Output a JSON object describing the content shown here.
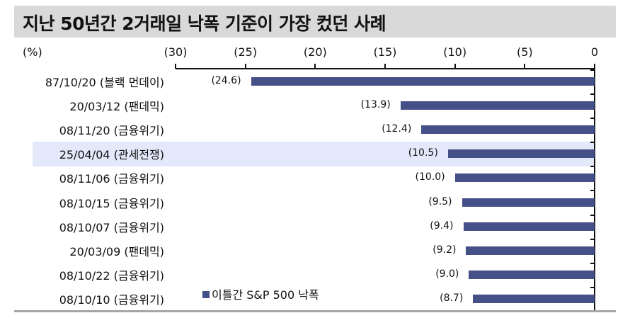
{
  "title": "지난 50년간 2거래일 낙폭 기준이 가장 컸던 사례",
  "unit_label": "(%)",
  "axis": {
    "ticks": [
      {
        "label": "(30)",
        "value": -30
      },
      {
        "label": "(25)",
        "value": -25
      },
      {
        "label": "(20)",
        "value": -20
      },
      {
        "label": "(15)",
        "value": -15
      },
      {
        "label": "(10)",
        "value": -10
      },
      {
        "label": "(5)",
        "value": -5
      },
      {
        "label": "0",
        "value": 0
      }
    ]
  },
  "legend": {
    "label": "이틀간 S&P 500 낙폭",
    "color": "#445087"
  },
  "colors": {
    "bar": "#445087",
    "highlight": "#e4e8fb",
    "title_bg": "#d9d9d9"
  },
  "highlighted_index": 3,
  "rows": [
    {
      "label": "87/10/20 (블랙 먼데이)",
      "value": -24.6,
      "value_label": "(24.6)"
    },
    {
      "label": "20/03/12 (팬데믹)",
      "value": -13.9,
      "value_label": "(13.9)"
    },
    {
      "label": "08/11/20 (금융위기)",
      "value": -12.4,
      "value_label": "(12.4)"
    },
    {
      "label": "25/04/04 (관세전쟁)",
      "value": -10.5,
      "value_label": "(10.5)"
    },
    {
      "label": "08/11/06 (금융위기)",
      "value": -10.0,
      "value_label": "(10.0)"
    },
    {
      "label": "08/10/15 (금융위기)",
      "value": -9.5,
      "value_label": "(9.5)"
    },
    {
      "label": "08/10/07 (금융위기)",
      "value": -9.4,
      "value_label": "(9.4)"
    },
    {
      "label": "20/03/09 (팬데믹)",
      "value": -9.2,
      "value_label": "(9.2)"
    },
    {
      "label": "08/10/22 (금융위기)",
      "value": -9.0,
      "value_label": "(9.0)"
    },
    {
      "label": "08/10/10 (금융위기)",
      "value": -8.7,
      "value_label": "(8.7)"
    }
  ],
  "chart_data": {
    "type": "bar",
    "orientation": "horizontal",
    "title": "지난 50년간 2거래일 낙폭 기준이 가장 컸던 사례",
    "xlabel": "",
    "ylabel": "(%)",
    "xlim": [
      -30,
      0
    ],
    "x_ticks": [
      "(30)",
      "(25)",
      "(20)",
      "(15)",
      "(10)",
      "(5)",
      "0"
    ],
    "categories": [
      "87/10/20 (블랙 먼데이)",
      "20/03/12 (팬데믹)",
      "08/11/20 (금융위기)",
      "25/04/04 (관세전쟁)",
      "08/11/06 (금융위기)",
      "08/10/15 (금융위기)",
      "08/10/07 (금융위기)",
      "20/03/09 (팬데믹)",
      "08/10/22 (금융위기)",
      "08/10/10 (금융위기)"
    ],
    "series": [
      {
        "name": "이틀간 S&P 500 낙폭",
        "values": [
          -24.6,
          -13.9,
          -12.4,
          -10.5,
          -10.0,
          -9.5,
          -9.4,
          -9.2,
          -9.0,
          -8.7
        ]
      }
    ],
    "highlighted_category": "25/04/04 (관세전쟁)",
    "legend_position": "bottom-inside",
    "grid": false,
    "axis_position": "top"
  }
}
